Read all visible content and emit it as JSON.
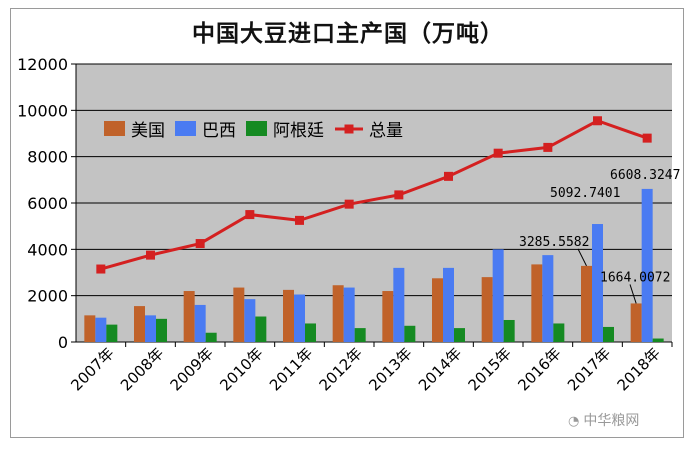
{
  "chart_data": {
    "type": "bar",
    "title": "中国大豆进口主产国（万吨）",
    "categories": [
      "2007年",
      "2008年",
      "2009年",
      "2010年",
      "2011年",
      "2012年",
      "2013年",
      "2014年",
      "2015年",
      "2016年",
      "2017年",
      "2018年"
    ],
    "ylim": [
      0,
      12000
    ],
    "yticks": [
      0,
      2000,
      4000,
      6000,
      8000,
      10000,
      12000
    ],
    "grid": true,
    "legend_position": "top-left",
    "series": [
      {
        "name": "美国",
        "kind": "bar",
        "color": "#C0622A",
        "values": [
          1150,
          1550,
          2200,
          2350,
          2250,
          2450,
          2200,
          2750,
          2800,
          3350,
          3285.5582,
          1664.0072
        ]
      },
      {
        "name": "巴西",
        "kind": "bar",
        "color": "#4A7BF2",
        "values": [
          1050,
          1150,
          1600,
          1850,
          2050,
          2350,
          3200,
          3200,
          4000,
          3750,
          5092.7401,
          6608.3247
        ]
      },
      {
        "name": "阿根廷",
        "kind": "bar",
        "color": "#158A22",
        "values": [
          750,
          1000,
          400,
          1100,
          800,
          600,
          700,
          600,
          950,
          800,
          650,
          150
        ]
      },
      {
        "name": "总量",
        "kind": "line",
        "color": "#D42020",
        "values": [
          3150,
          3750,
          4250,
          5500,
          5250,
          5950,
          6350,
          7150,
          8150,
          8400,
          9550,
          8800
        ]
      }
    ],
    "annotations": [
      {
        "text": "3285.5582"
      },
      {
        "text": "5092.7401"
      },
      {
        "text": "1664.0072"
      },
      {
        "text": "6608.3247"
      }
    ]
  },
  "watermark": {
    "icon": "wechat-icon",
    "text": "中华粮网"
  }
}
